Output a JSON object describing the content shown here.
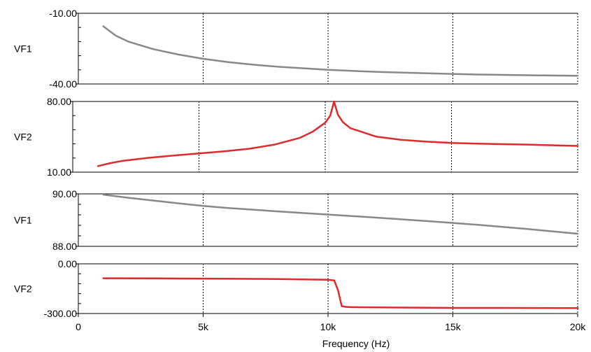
{
  "chart_data": {
    "type": "line",
    "xlabel": "Frequency (Hz)",
    "x_tick_labels": [
      "0",
      "5k",
      "10k",
      "15k",
      "20k"
    ],
    "x_ticks": [
      0,
      5000,
      10000,
      15000,
      20000
    ],
    "xlim": [
      0,
      20000
    ],
    "grid": "vertical dashed at 5k intervals",
    "panels": [
      {
        "name": "VF1",
        "ylim": [
          -40,
          -10
        ],
        "y_tick_labels": [
          "-10.00",
          "-40.00"
        ],
        "color": "#888888",
        "series": {
          "x": [
            1000,
            1500,
            2000,
            3000,
            4000,
            5000,
            6000,
            7000,
            8000,
            10000,
            12000,
            14000,
            16000,
            18000,
            20000
          ],
          "y": [
            -15.5,
            -19.5,
            -22.0,
            -25.2,
            -27.5,
            -29.3,
            -30.7,
            -31.8,
            -32.7,
            -34.0,
            -34.9,
            -35.5,
            -36.0,
            -36.3,
            -36.5
          ]
        }
      },
      {
        "name": "VF2",
        "ylim": [
          10,
          80
        ],
        "y_tick_labels": [
          "80.00",
          "10.00"
        ],
        "color": "#dd2b2b",
        "series": {
          "x": [
            1000,
            1500,
            2000,
            3000,
            4000,
            5000,
            6000,
            7000,
            8000,
            9000,
            9500,
            10000,
            10200,
            10350,
            10500,
            10700,
            11000,
            12000,
            13000,
            14000,
            15000,
            16000,
            18000,
            20000
          ],
          "y": [
            16.0,
            19.0,
            21.3,
            24.2,
            26.5,
            28.5,
            30.6,
            33.2,
            37.3,
            44.0,
            50.0,
            59.0,
            66.0,
            80.0,
            67.0,
            59.5,
            53.5,
            45.3,
            42.0,
            40.2,
            39.0,
            38.3,
            37.3,
            36.0
          ]
        }
      },
      {
        "name": "VF1",
        "ylim": [
          88,
          90
        ],
        "y_tick_labels": [
          "90.00",
          "88.00"
        ],
        "color": "#888888",
        "series": {
          "x": [
            1000,
            2000,
            4000,
            5000,
            6000,
            8000,
            10000,
            12000,
            14000,
            15000,
            16000,
            18000,
            20000
          ],
          "y": [
            89.97,
            89.85,
            89.64,
            89.54,
            89.46,
            89.33,
            89.21,
            89.09,
            88.96,
            88.89,
            88.82,
            88.66,
            88.48
          ]
        }
      },
      {
        "name": "VF2",
        "ylim": [
          -300,
          0
        ],
        "y_tick_labels": [
          "0.00",
          "-300.00"
        ],
        "color": "#dd2b2b",
        "series": {
          "x": [
            1000,
            3000,
            5000,
            7000,
            8000,
            9000,
            10000,
            10250,
            10400,
            10550,
            10700,
            11000,
            13000,
            15000,
            17000,
            20000
          ],
          "y": [
            -87,
            -88,
            -89,
            -91,
            -92,
            -94,
            -96,
            -100,
            -160,
            -255,
            -260,
            -262,
            -264,
            -266,
            -266,
            -267
          ]
        }
      }
    ]
  }
}
